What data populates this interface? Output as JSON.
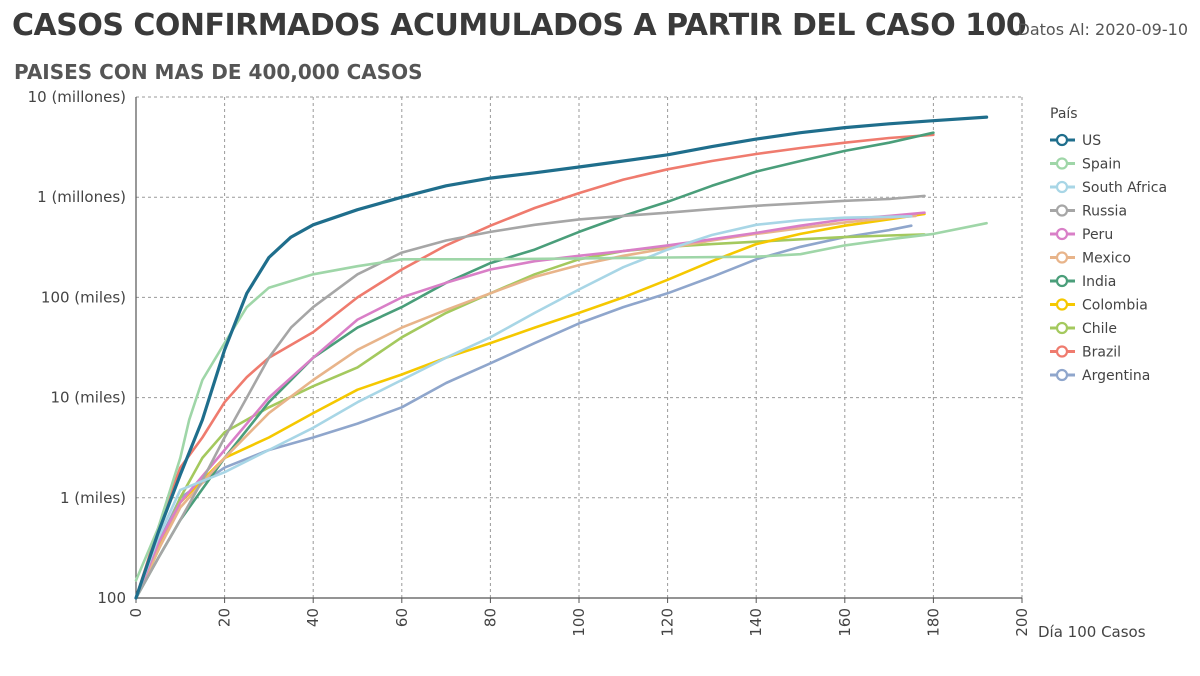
{
  "header": {
    "title": "CASOS CONFIRMADOS ACUMULADOS A PARTIR DEL CASO 100",
    "subtitle": "PAISES CON MAS DE 400,000 CASOS",
    "date_label": "Datos Al: 2020-09-10"
  },
  "chart_data": {
    "type": "line",
    "xlabel": "Día 100 Casos",
    "ylabel": "",
    "xlim": [
      0,
      200
    ],
    "ylim": [
      100,
      10000000
    ],
    "yscale": "log",
    "grid": true,
    "legend_title": "País",
    "legend_position": "right",
    "x_ticks": [
      0,
      20,
      40,
      60,
      80,
      100,
      120,
      140,
      160,
      180,
      200
    ],
    "y_ticks": [
      {
        "value": 100,
        "label": "100"
      },
      {
        "value": 1000,
        "label": "1 (miles)"
      },
      {
        "value": 10000,
        "label": "10 (miles)"
      },
      {
        "value": 100000,
        "label": "100 (miles)"
      },
      {
        "value": 1000000,
        "label": "1 (millones)"
      },
      {
        "value": 10000000,
        "label": "10 (millones)"
      }
    ],
    "series": [
      {
        "name": "US",
        "color": "#1f6e8c",
        "width": 3.2,
        "points": [
          [
            0,
            100
          ],
          [
            5,
            450
          ],
          [
            10,
            1700
          ],
          [
            15,
            6000
          ],
          [
            20,
            30000
          ],
          [
            25,
            110000
          ],
          [
            30,
            250000
          ],
          [
            35,
            400000
          ],
          [
            40,
            530000
          ],
          [
            50,
            750000
          ],
          [
            60,
            1000000
          ],
          [
            70,
            1300000
          ],
          [
            80,
            1550000
          ],
          [
            90,
            1750000
          ],
          [
            100,
            2000000
          ],
          [
            110,
            2300000
          ],
          [
            120,
            2650000
          ],
          [
            130,
            3200000
          ],
          [
            140,
            3800000
          ],
          [
            150,
            4400000
          ],
          [
            160,
            4950000
          ],
          [
            170,
            5400000
          ],
          [
            180,
            5800000
          ],
          [
            192,
            6300000
          ]
        ]
      },
      {
        "name": "Spain",
        "color": "#9fd6a8",
        "width": 2.6,
        "points": [
          [
            0,
            150
          ],
          [
            5,
            500
          ],
          [
            10,
            2500
          ],
          [
            12,
            6000
          ],
          [
            15,
            15000
          ],
          [
            20,
            35000
          ],
          [
            25,
            80000
          ],
          [
            30,
            125000
          ],
          [
            40,
            170000
          ],
          [
            50,
            205000
          ],
          [
            60,
            240000
          ],
          [
            80,
            240000
          ],
          [
            100,
            245000
          ],
          [
            120,
            250000
          ],
          [
            140,
            255000
          ],
          [
            150,
            270000
          ],
          [
            160,
            330000
          ],
          [
            170,
            380000
          ],
          [
            180,
            430000
          ],
          [
            192,
            550000
          ]
        ]
      },
      {
        "name": "South Africa",
        "color": "#a8d6e6",
        "width": 2.6,
        "points": [
          [
            0,
            100
          ],
          [
            5,
            400
          ],
          [
            10,
            1200
          ],
          [
            20,
            1800
          ],
          [
            30,
            3000
          ],
          [
            40,
            5000
          ],
          [
            50,
            9000
          ],
          [
            60,
            15000
          ],
          [
            70,
            25000
          ],
          [
            80,
            40000
          ],
          [
            90,
            70000
          ],
          [
            100,
            120000
          ],
          [
            110,
            200000
          ],
          [
            120,
            300000
          ],
          [
            130,
            420000
          ],
          [
            140,
            530000
          ],
          [
            150,
            590000
          ],
          [
            160,
            625000
          ],
          [
            175,
            645000
          ]
        ]
      },
      {
        "name": "Russia",
        "color": "#a6a6a6",
        "width": 2.6,
        "points": [
          [
            0,
            100
          ],
          [
            5,
            250
          ],
          [
            10,
            600
          ],
          [
            15,
            1500
          ],
          [
            20,
            4000
          ],
          [
            25,
            10000
          ],
          [
            30,
            25000
          ],
          [
            35,
            50000
          ],
          [
            40,
            80000
          ],
          [
            50,
            170000
          ],
          [
            60,
            280000
          ],
          [
            70,
            370000
          ],
          [
            80,
            450000
          ],
          [
            90,
            530000
          ],
          [
            100,
            600000
          ],
          [
            110,
            650000
          ],
          [
            120,
            700000
          ],
          [
            130,
            760000
          ],
          [
            140,
            820000
          ],
          [
            150,
            870000
          ],
          [
            160,
            920000
          ],
          [
            170,
            960000
          ],
          [
            178,
            1030000
          ]
        ]
      },
      {
        "name": "Peru",
        "color": "#d97fc7",
        "width": 2.6,
        "points": [
          [
            0,
            100
          ],
          [
            5,
            350
          ],
          [
            10,
            900
          ],
          [
            20,
            3000
          ],
          [
            30,
            10000
          ],
          [
            40,
            25000
          ],
          [
            50,
            60000
          ],
          [
            60,
            100000
          ],
          [
            70,
            140000
          ],
          [
            80,
            190000
          ],
          [
            90,
            230000
          ],
          [
            100,
            260000
          ],
          [
            110,
            290000
          ],
          [
            120,
            330000
          ],
          [
            130,
            380000
          ],
          [
            140,
            440000
          ],
          [
            150,
            520000
          ],
          [
            160,
            600000
          ],
          [
            170,
            650000
          ],
          [
            178,
            700000
          ]
        ]
      },
      {
        "name": "Mexico",
        "color": "#e8b48a",
        "width": 2.6,
        "points": [
          [
            0,
            100
          ],
          [
            5,
            300
          ],
          [
            10,
            800
          ],
          [
            20,
            2500
          ],
          [
            30,
            7000
          ],
          [
            40,
            15000
          ],
          [
            50,
            30000
          ],
          [
            60,
            50000
          ],
          [
            70,
            75000
          ],
          [
            80,
            110000
          ],
          [
            90,
            160000
          ],
          [
            100,
            210000
          ],
          [
            110,
            260000
          ],
          [
            120,
            310000
          ],
          [
            130,
            370000
          ],
          [
            140,
            430000
          ],
          [
            150,
            490000
          ],
          [
            160,
            560000
          ],
          [
            170,
            620000
          ],
          [
            176,
            650000
          ]
        ]
      },
      {
        "name": "India",
        "color": "#4a9e7a",
        "width": 2.6,
        "points": [
          [
            0,
            100
          ],
          [
            5,
            250
          ],
          [
            10,
            600
          ],
          [
            20,
            2500
          ],
          [
            30,
            9000
          ],
          [
            40,
            25000
          ],
          [
            50,
            50000
          ],
          [
            60,
            80000
          ],
          [
            70,
            140000
          ],
          [
            80,
            220000
          ],
          [
            90,
            300000
          ],
          [
            100,
            450000
          ],
          [
            110,
            650000
          ],
          [
            120,
            900000
          ],
          [
            130,
            1300000
          ],
          [
            140,
            1800000
          ],
          [
            150,
            2300000
          ],
          [
            160,
            2900000
          ],
          [
            170,
            3500000
          ],
          [
            180,
            4400000
          ]
        ]
      },
      {
        "name": "Colombia",
        "color": "#f5c800",
        "width": 2.6,
        "points": [
          [
            0,
            100
          ],
          [
            5,
            300
          ],
          [
            10,
            900
          ],
          [
            20,
            2500
          ],
          [
            30,
            4000
          ],
          [
            40,
            7000
          ],
          [
            50,
            12000
          ],
          [
            60,
            17000
          ],
          [
            70,
            25000
          ],
          [
            80,
            35000
          ],
          [
            90,
            50000
          ],
          [
            100,
            70000
          ],
          [
            110,
            100000
          ],
          [
            120,
            150000
          ],
          [
            130,
            230000
          ],
          [
            140,
            340000
          ],
          [
            150,
            430000
          ],
          [
            160,
            520000
          ],
          [
            170,
            600000
          ],
          [
            178,
            680000
          ]
        ]
      },
      {
        "name": "Chile",
        "color": "#a4c95e",
        "width": 2.6,
        "points": [
          [
            0,
            100
          ],
          [
            5,
            300
          ],
          [
            10,
            1000
          ],
          [
            15,
            2500
          ],
          [
            20,
            4500
          ],
          [
            30,
            8000
          ],
          [
            40,
            13000
          ],
          [
            50,
            20000
          ],
          [
            60,
            40000
          ],
          [
            70,
            70000
          ],
          [
            80,
            110000
          ],
          [
            90,
            170000
          ],
          [
            100,
            240000
          ],
          [
            110,
            290000
          ],
          [
            120,
            320000
          ],
          [
            130,
            340000
          ],
          [
            140,
            360000
          ],
          [
            150,
            380000
          ],
          [
            160,
            400000
          ],
          [
            170,
            415000
          ],
          [
            178,
            425000
          ]
        ]
      },
      {
        "name": "Brazil",
        "color": "#ef7b6e",
        "width": 2.6,
        "points": [
          [
            0,
            100
          ],
          [
            5,
            500
          ],
          [
            10,
            2000
          ],
          [
            15,
            4000
          ],
          [
            20,
            9000
          ],
          [
            25,
            16000
          ],
          [
            30,
            25000
          ],
          [
            40,
            45000
          ],
          [
            50,
            100000
          ],
          [
            60,
            190000
          ],
          [
            70,
            330000
          ],
          [
            80,
            520000
          ],
          [
            90,
            780000
          ],
          [
            100,
            1100000
          ],
          [
            110,
            1500000
          ],
          [
            120,
            1900000
          ],
          [
            130,
            2300000
          ],
          [
            140,
            2700000
          ],
          [
            150,
            3100000
          ],
          [
            160,
            3500000
          ],
          [
            170,
            3900000
          ],
          [
            180,
            4200000
          ]
        ]
      },
      {
        "name": "Argentina",
        "color": "#8fa6cc",
        "width": 2.6,
        "points": [
          [
            0,
            100
          ],
          [
            5,
            350
          ],
          [
            10,
            1000
          ],
          [
            20,
            2000
          ],
          [
            30,
            3000
          ],
          [
            40,
            4000
          ],
          [
            50,
            5500
          ],
          [
            60,
            8000
          ],
          [
            70,
            14000
          ],
          [
            80,
            22000
          ],
          [
            90,
            35000
          ],
          [
            100,
            55000
          ],
          [
            110,
            80000
          ],
          [
            120,
            110000
          ],
          [
            130,
            160000
          ],
          [
            140,
            240000
          ],
          [
            150,
            320000
          ],
          [
            160,
            400000
          ],
          [
            170,
            470000
          ],
          [
            175,
            520000
          ]
        ]
      }
    ]
  }
}
